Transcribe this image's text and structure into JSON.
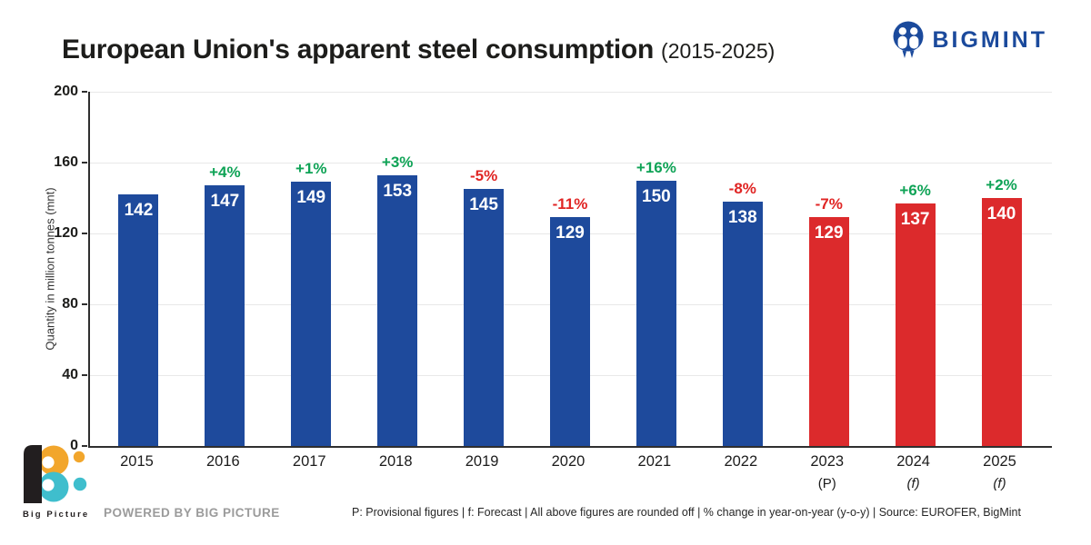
{
  "header": {
    "title": "European Union's apparent steel consumption",
    "title_suffix": "(2015-2025)",
    "brand": "BIGMINT"
  },
  "chart_data": {
    "type": "bar",
    "title": "European Union's apparent steel consumption (2015-2025)",
    "ylabel": "Quantity in million tonnes (mnt)",
    "ylim": [
      0,
      200
    ],
    "yticks": [
      0,
      40,
      80,
      120,
      160,
      200
    ],
    "grid": true,
    "legend": "none",
    "categories": [
      "2015",
      "2016",
      "2017",
      "2018",
      "2019",
      "2020",
      "2021",
      "2022",
      "2023",
      "2024",
      "2025"
    ],
    "sublabels": [
      "",
      "",
      "",
      "",
      "",
      "",
      "",
      "",
      "(P)",
      "(f)",
      "(f)"
    ],
    "values": [
      142,
      147,
      149,
      153,
      145,
      129,
      150,
      138,
      129,
      137,
      140
    ],
    "pct_change": [
      "",
      "+4%",
      "+1%",
      "+3%",
      "-5%",
      "-11%",
      "+16%",
      "-8%",
      "-7%",
      "+6%",
      "+2%"
    ],
    "bar_colors": [
      "#1e4a9c",
      "#1e4a9c",
      "#1e4a9c",
      "#1e4a9c",
      "#1e4a9c",
      "#1e4a9c",
      "#1e4a9c",
      "#1e4a9c",
      "#dc2a2c",
      "#dc2a2c",
      "#dc2a2c"
    ]
  },
  "colors": {
    "bar_actual": "#1e4a9c",
    "bar_forecast": "#dc2a2c",
    "positive_change": "#0fa356",
    "negative_change": "#e02524",
    "brand_blue": "#1b4a9c",
    "logo_orange": "#f2a62c",
    "logo_teal": "#3fbecd"
  },
  "footer": {
    "logo_caption": "Big Picture",
    "powered_by": "POWERED BY BIG PICTURE",
    "note": "P: Provisional figures | f: Forecast | All above figures are rounded off | % change in year-on-year (y-o-y) | Source: EUROFER, BigMint"
  }
}
